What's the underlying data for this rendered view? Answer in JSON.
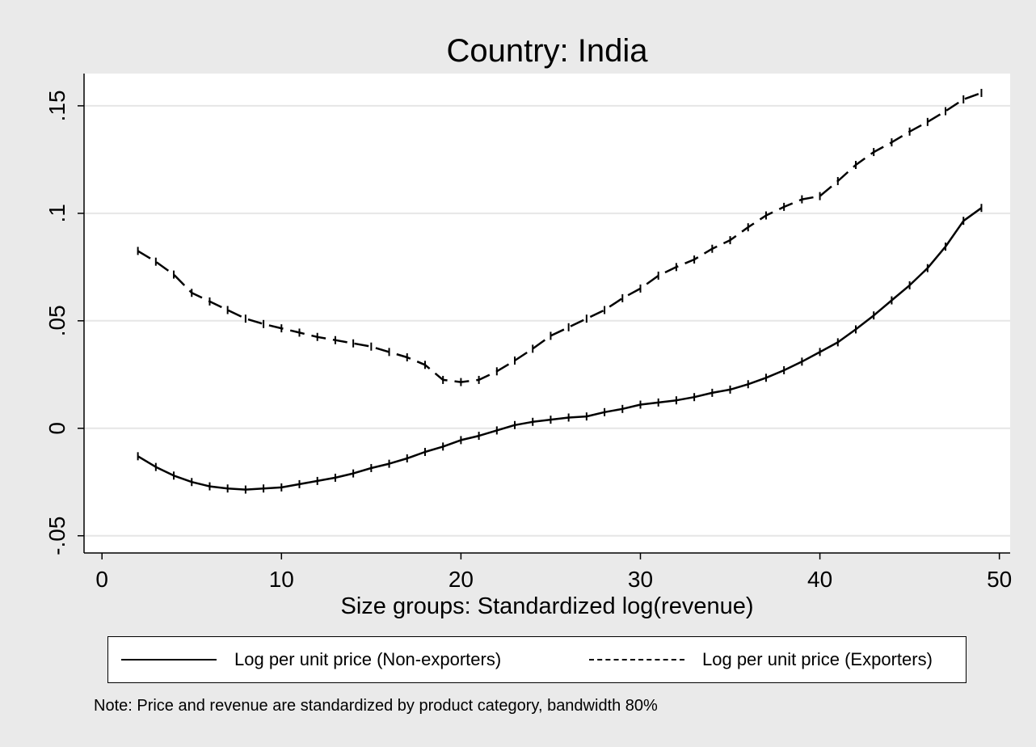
{
  "chart_data": {
    "type": "line",
    "title": "Country: India",
    "xlabel": "Size groups: Standardized log(revenue)",
    "ylabel": "",
    "xlim": [
      -1,
      50.6
    ],
    "ylim": [
      -0.058,
      0.165
    ],
    "xticks": [
      0,
      10,
      20,
      30,
      40,
      50
    ],
    "xtick_labels": [
      "0",
      "10",
      "20",
      "30",
      "40",
      "50"
    ],
    "yticks": [
      -0.05,
      0,
      0.05,
      0.1,
      0.15
    ],
    "ytick_labels": [
      "-.05",
      "0",
      ".05",
      ".1",
      ".15"
    ],
    "grid": true,
    "legend_position": "bottom",
    "x": [
      2,
      3,
      4,
      5,
      6,
      7,
      8,
      9,
      10,
      11,
      12,
      13,
      14,
      15,
      16,
      17,
      18,
      19,
      20,
      21,
      22,
      23,
      24,
      25,
      26,
      27,
      28,
      29,
      30,
      31,
      32,
      33,
      34,
      35,
      36,
      37,
      38,
      39,
      40,
      41,
      42,
      43,
      44,
      45,
      46,
      47,
      48,
      49
    ],
    "series": [
      {
        "name": "Log per unit price (Non-exporters)",
        "style": "solid",
        "values": [
          -0.013,
          -0.018,
          -0.022,
          -0.025,
          -0.027,
          -0.028,
          -0.0285,
          -0.028,
          -0.0275,
          -0.026,
          -0.0245,
          -0.023,
          -0.021,
          -0.0185,
          -0.0165,
          -0.014,
          -0.011,
          -0.0085,
          -0.0055,
          -0.0035,
          -0.001,
          0.0015,
          0.003,
          0.004,
          0.005,
          0.0055,
          0.0075,
          0.009,
          0.011,
          0.012,
          0.013,
          0.0145,
          0.0165,
          0.018,
          0.0205,
          0.0235,
          0.027,
          0.031,
          0.0355,
          0.04,
          0.046,
          0.0525,
          0.0595,
          0.0665,
          0.0745,
          0.0845,
          0.0965,
          0.1025
        ]
      },
      {
        "name": "Log per unit price (Exporters)",
        "style": "dashed",
        "values": [
          0.0825,
          0.0775,
          0.0715,
          0.063,
          0.059,
          0.055,
          0.051,
          0.0485,
          0.0465,
          0.0445,
          0.0425,
          0.041,
          0.0395,
          0.038,
          0.0355,
          0.033,
          0.0295,
          0.0225,
          0.0215,
          0.0225,
          0.0265,
          0.0315,
          0.037,
          0.043,
          0.047,
          0.051,
          0.055,
          0.0605,
          0.065,
          0.071,
          0.075,
          0.0785,
          0.0835,
          0.0875,
          0.0935,
          0.099,
          0.103,
          0.1065,
          0.108,
          0.115,
          0.1225,
          0.1285,
          0.133,
          0.138,
          0.1425,
          0.1475,
          0.153,
          0.156
        ]
      }
    ]
  },
  "note": "Note: Price and revenue are standardized by product category, bandwidth 80%",
  "colors": {
    "background": "#eaeaea",
    "plot_area": "#ffffff",
    "grid": "#e6e6e6",
    "line": "#000000"
  }
}
